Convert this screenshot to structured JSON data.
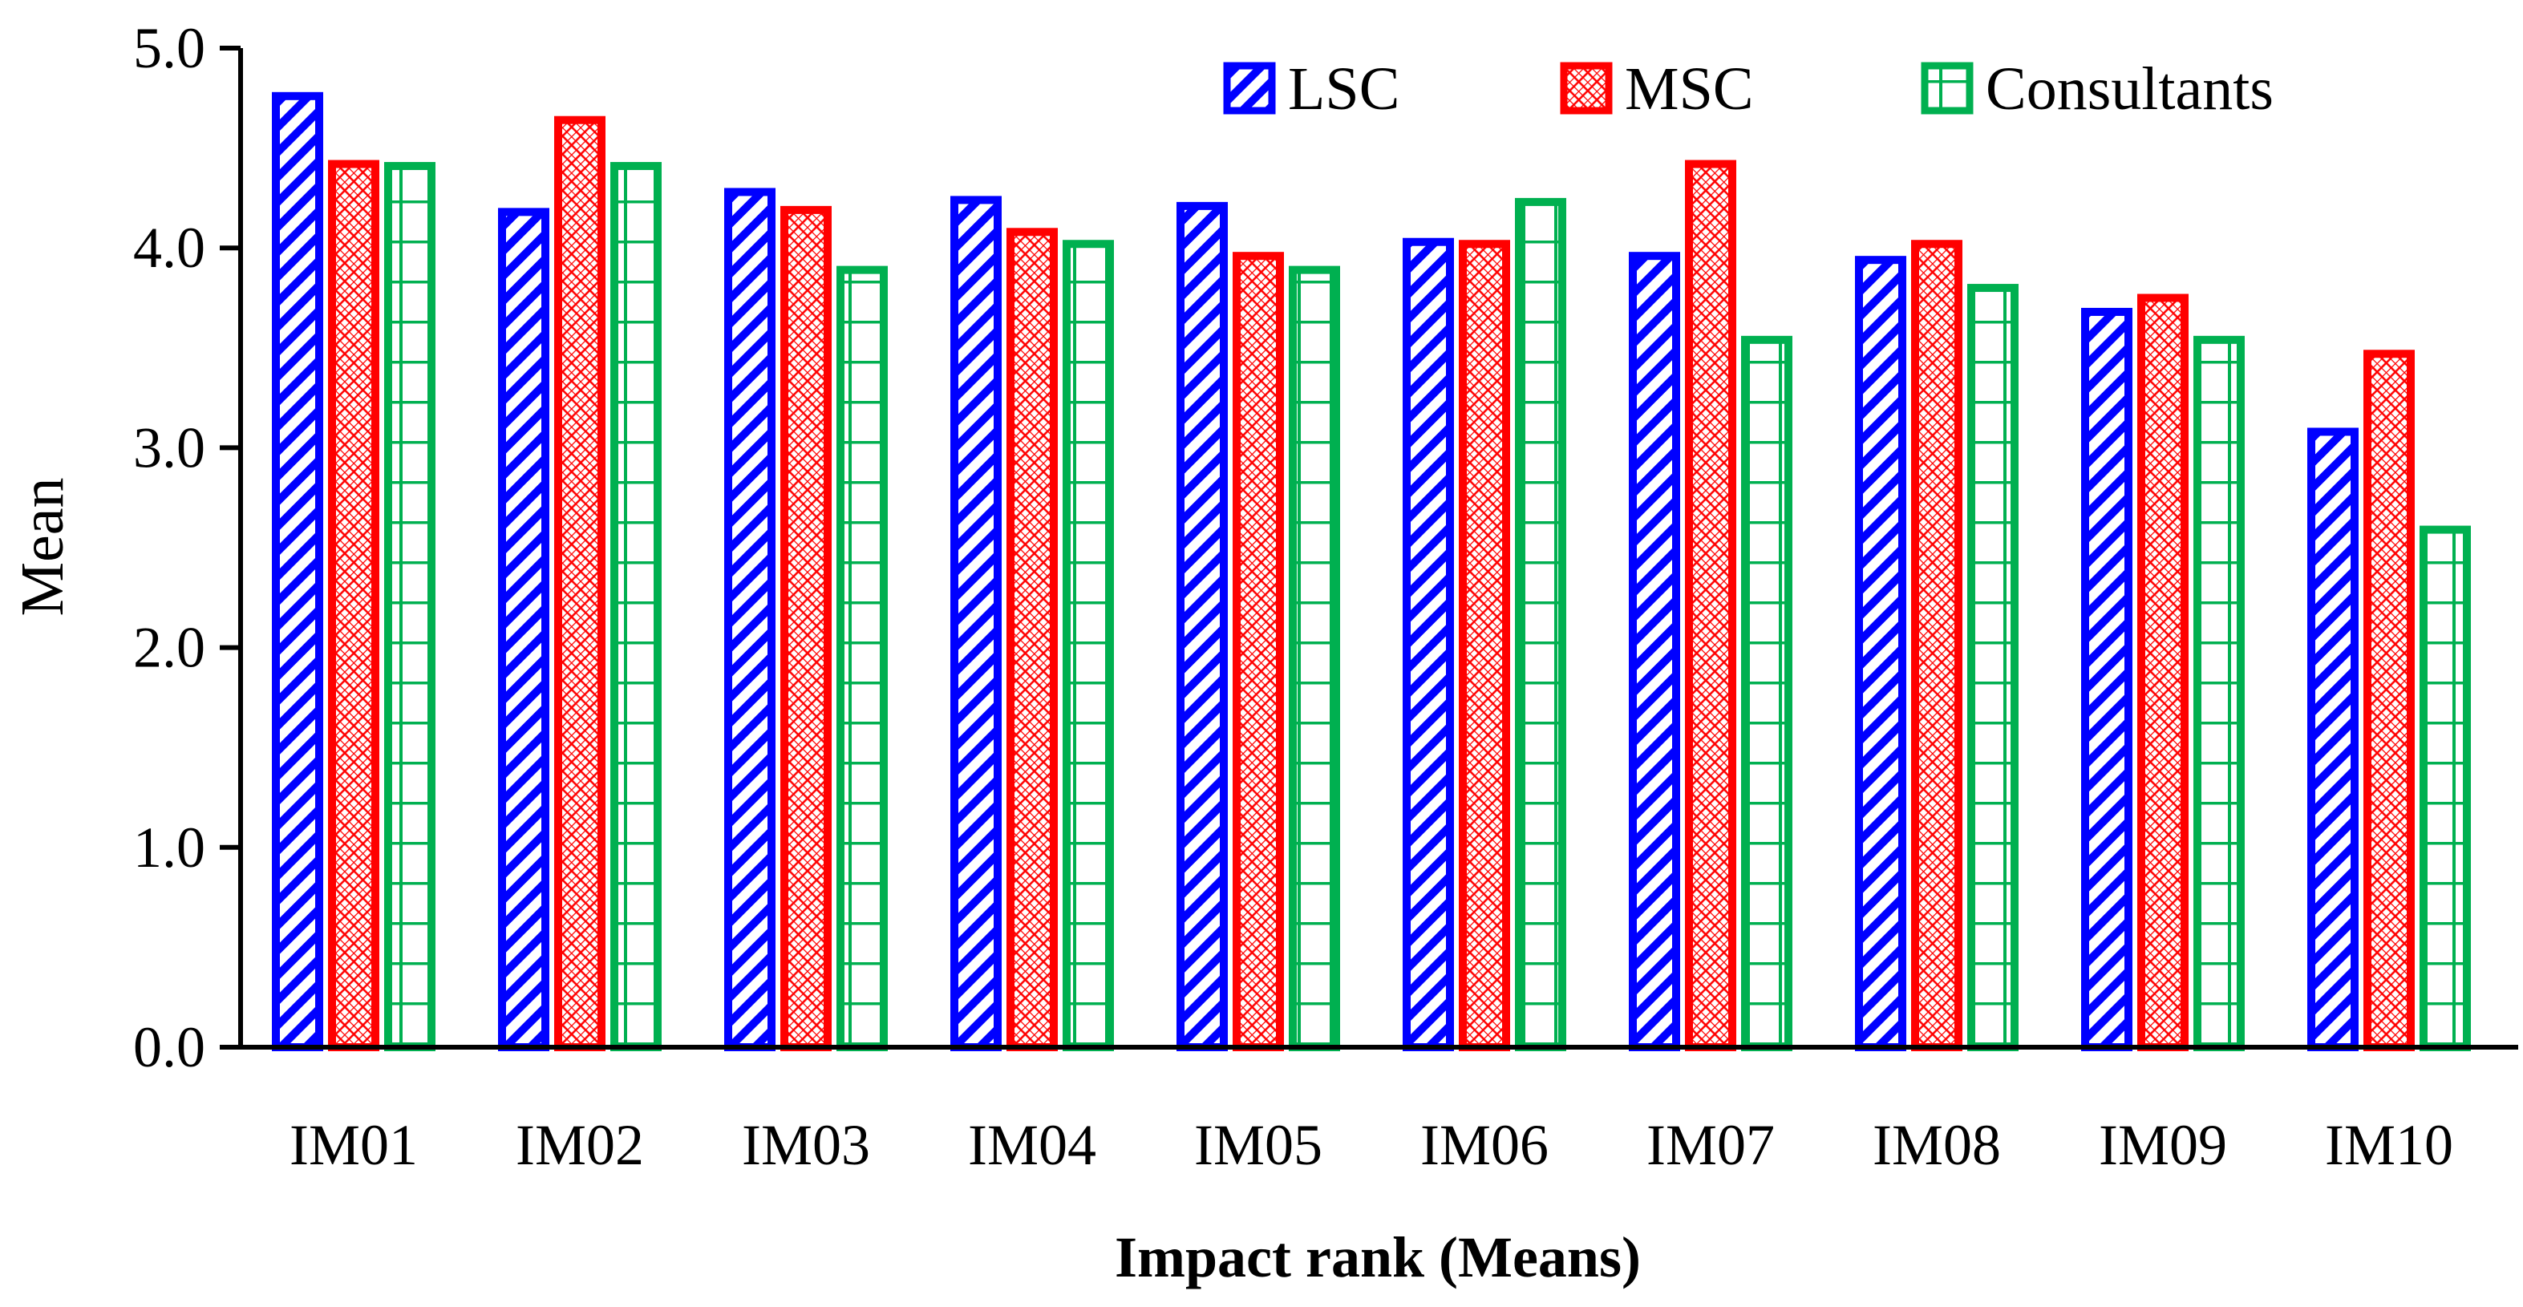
{
  "chart_data": {
    "type": "bar",
    "title": "",
    "xlabel": "Impact rank (Means)",
    "ylabel": "Mean",
    "ylim": [
      0,
      5
    ],
    "yticks": [
      "0.0",
      "1.0",
      "2.0",
      "3.0",
      "4.0",
      "5.0"
    ],
    "categories": [
      "IM01",
      "IM02",
      "IM03",
      "IM04",
      "IM05",
      "IM06",
      "IM07",
      "IM08",
      "IM09",
      "IM10"
    ],
    "series": [
      {
        "name": "LSC",
        "color": "#0000ff",
        "pattern": "diagonal-stripes",
        "values": [
          4.78,
          4.2,
          4.3,
          4.26,
          4.23,
          4.05,
          3.98,
          3.96,
          3.7,
          3.1
        ]
      },
      {
        "name": "MSC",
        "color": "#ff0000",
        "pattern": "checker",
        "values": [
          4.44,
          4.66,
          4.21,
          4.1,
          3.98,
          4.04,
          4.44,
          4.04,
          3.77,
          3.49
        ]
      },
      {
        "name": "Consultants",
        "color": "#00b050",
        "pattern": "grid",
        "values": [
          4.43,
          4.43,
          3.91,
          4.04,
          3.91,
          4.25,
          3.56,
          3.82,
          3.56,
          2.61
        ]
      }
    ],
    "legend_position": "top-right",
    "grid": false
  }
}
